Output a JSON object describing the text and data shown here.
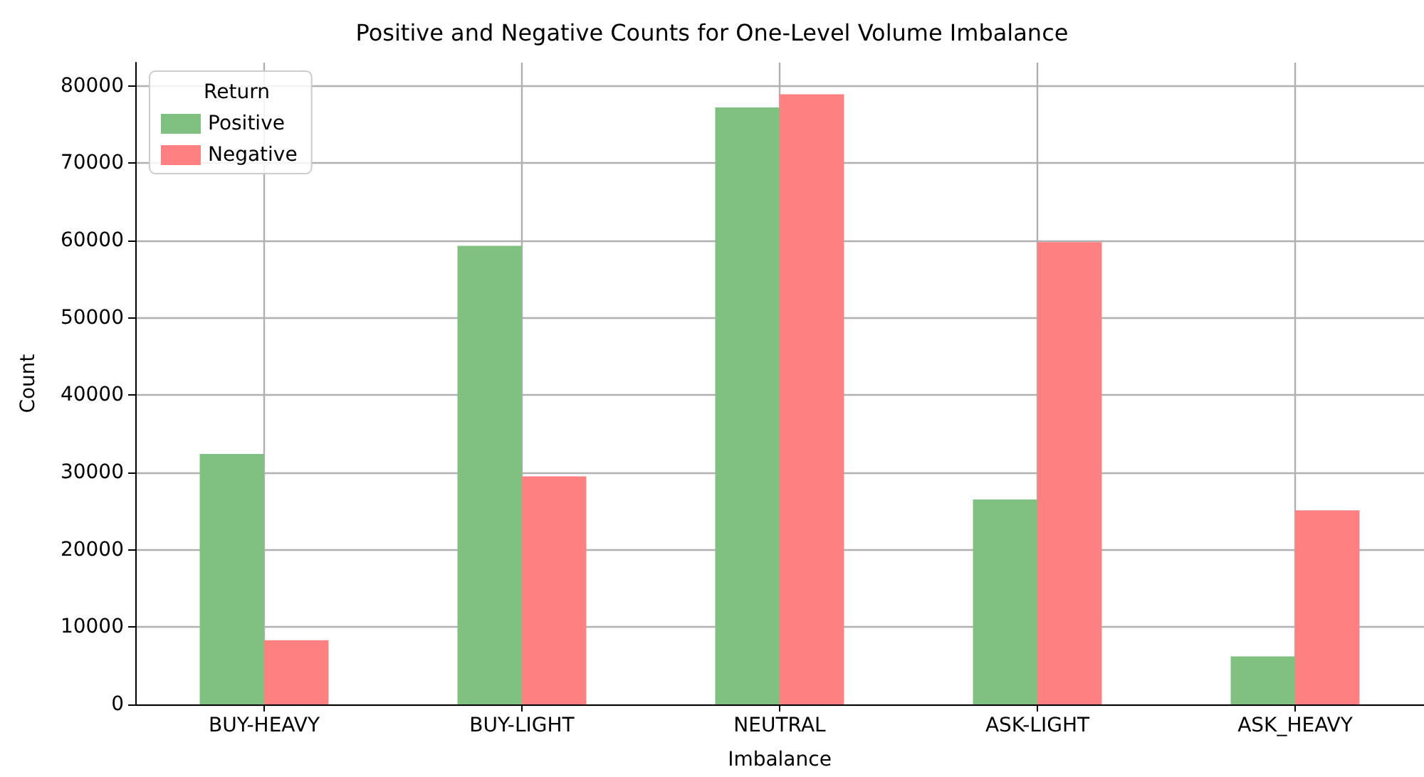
{
  "chart_data": {
    "type": "bar",
    "title": "Positive and Negative Counts for One-Level Volume Imbalance",
    "xlabel": "Imbalance",
    "ylabel": "Count",
    "legend_title": "Return",
    "categories": [
      "BUY-HEAVY",
      "BUY-LIGHT",
      "NEUTRAL",
      "ASK-LIGHT",
      "ASK_HEAVY"
    ],
    "series": [
      {
        "name": "Positive",
        "color": "#80c080",
        "values": [
          32400,
          59300,
          77200,
          26500,
          6200
        ]
      },
      {
        "name": "Negative",
        "color": "#ff8080",
        "values": [
          8300,
          29500,
          78900,
          59800,
          25100
        ]
      }
    ],
    "ylim": [
      0,
      83000
    ],
    "yticks": [
      0,
      10000,
      20000,
      30000,
      40000,
      50000,
      60000,
      70000,
      80000
    ],
    "grid": true,
    "legend": "top left"
  }
}
